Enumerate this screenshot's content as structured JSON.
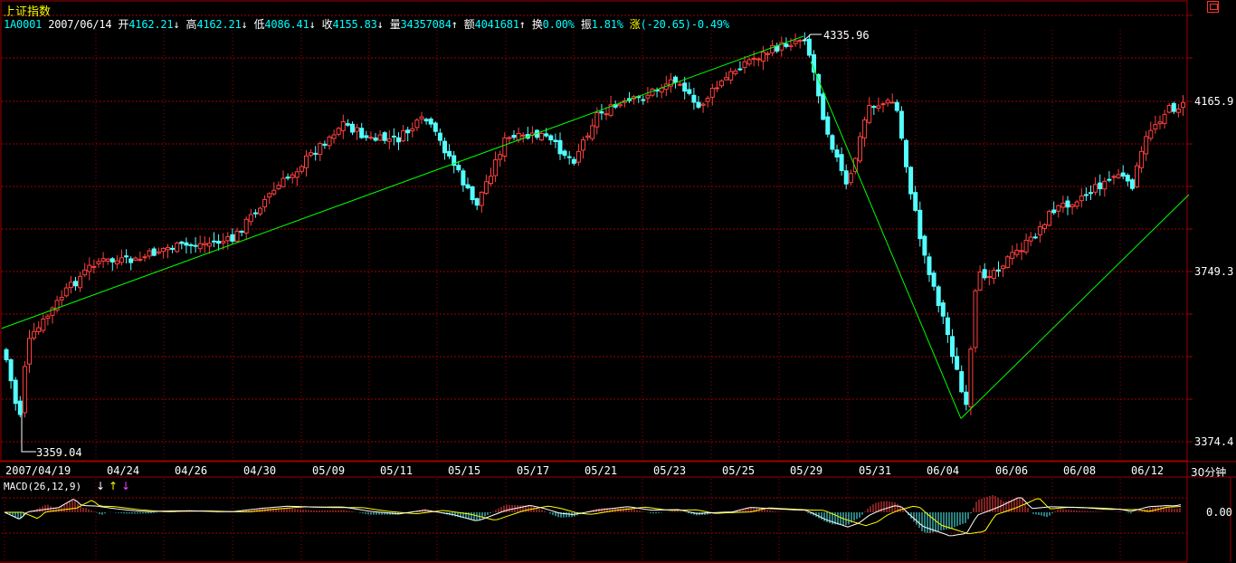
{
  "header": {
    "index_name": "上证指数",
    "code": "1A0001",
    "date": "2007/06/14",
    "open_label": "开",
    "open": "4162.21",
    "high_label": "高",
    "high": "4162.21",
    "low_label": "低",
    "low": "4086.41",
    "close_label": "收",
    "close": "4155.83",
    "volume_label": "量",
    "volume": "34357084",
    "amount_label": "额",
    "amount": "4041681",
    "turnover_label": "换",
    "turnover": "0.00%",
    "amplitude_label": "振",
    "amplitude": "1.81%",
    "change_label": "涨",
    "change": "(-20.65)-0.49%",
    "arrow_down": "↓",
    "arrow_up": "↑"
  },
  "timeframe": "30分钟",
  "colors": {
    "up": "#ff4040",
    "down": "#54ffff",
    "grid": "#a00000",
    "trend": "#00ff00",
    "macd_diff": "#ffffff",
    "macd_dea": "#ffff00",
    "axis_text": "#ffffff"
  },
  "chart_data": [
    {
      "type": "candlestick",
      "title": "上证指数",
      "x_tick_labels": [
        "2007/04/19",
        "04/24",
        "04/26",
        "04/30",
        "05/09",
        "05/11",
        "05/15",
        "05/17",
        "05/21",
        "05/23",
        "05/25",
        "05/29",
        "05/31",
        "06/04",
        "06/06",
        "06/08",
        "06/12"
      ],
      "y_tick_labels": [
        "4165.9",
        "3749.3",
        "3374.4"
      ],
      "ylim": [
        3359.04,
        4335.96
      ],
      "annotations": [
        {
          "label": "4335.96",
          "x_category": "05/29",
          "value": 4335.96
        },
        {
          "label": "3359.04",
          "x_category": "2007/04/19",
          "value": 3359.04
        }
      ],
      "path_anchors": [
        {
          "x_category": "2007/04/19",
          "value": 3640
        },
        {
          "x_category": "04/24",
          "value": 3800
        },
        {
          "x_category": "04/30",
          "value": 3870
        },
        {
          "x_category": "05/09",
          "value": 4110
        },
        {
          "x_category": "05/11",
          "value": 4130
        },
        {
          "x_category": "05/15",
          "value": 3930
        },
        {
          "x_category": "05/17",
          "value": 4090
        },
        {
          "x_category": "05/21",
          "value": 4090
        },
        {
          "x_category": "05/23",
          "value": 4190
        },
        {
          "x_category": "05/25",
          "value": 4240
        },
        {
          "x_category": "05/29",
          "value": 4320
        },
        {
          "x_category": "05/31",
          "value": 4020
        },
        {
          "x_category": "06/04",
          "value": 3640
        },
        {
          "x_category": "06/06",
          "value": 3750
        },
        {
          "x_category": "06/08",
          "value": 3950
        },
        {
          "x_category": "06/12",
          "value": 4150
        }
      ],
      "trend_lines": [
        {
          "from": {
            "x_category": "2007/04/19",
            "value": 3640
          },
          "to": {
            "x_category": "05/29",
            "value": 4335.96
          }
        },
        {
          "from": {
            "x_category": "05/29",
            "value": 4335.96
          },
          "to": {
            "x_category": "06/04",
            "value": 3425
          }
        },
        {
          "from": {
            "x_category": "06/04",
            "value": 3425
          },
          "to": {
            "x_category": "06/12",
            "value": 3920
          }
        }
      ]
    },
    {
      "type": "macd",
      "title": "MACD(26,12,9)",
      "y_tick_labels": [
        "0.00"
      ],
      "marker_arrows": [
        "↓",
        "↑",
        "↓"
      ],
      "marker_colors": [
        "#ffffff",
        "#ffff00",
        "#ff40ff"
      ]
    }
  ]
}
